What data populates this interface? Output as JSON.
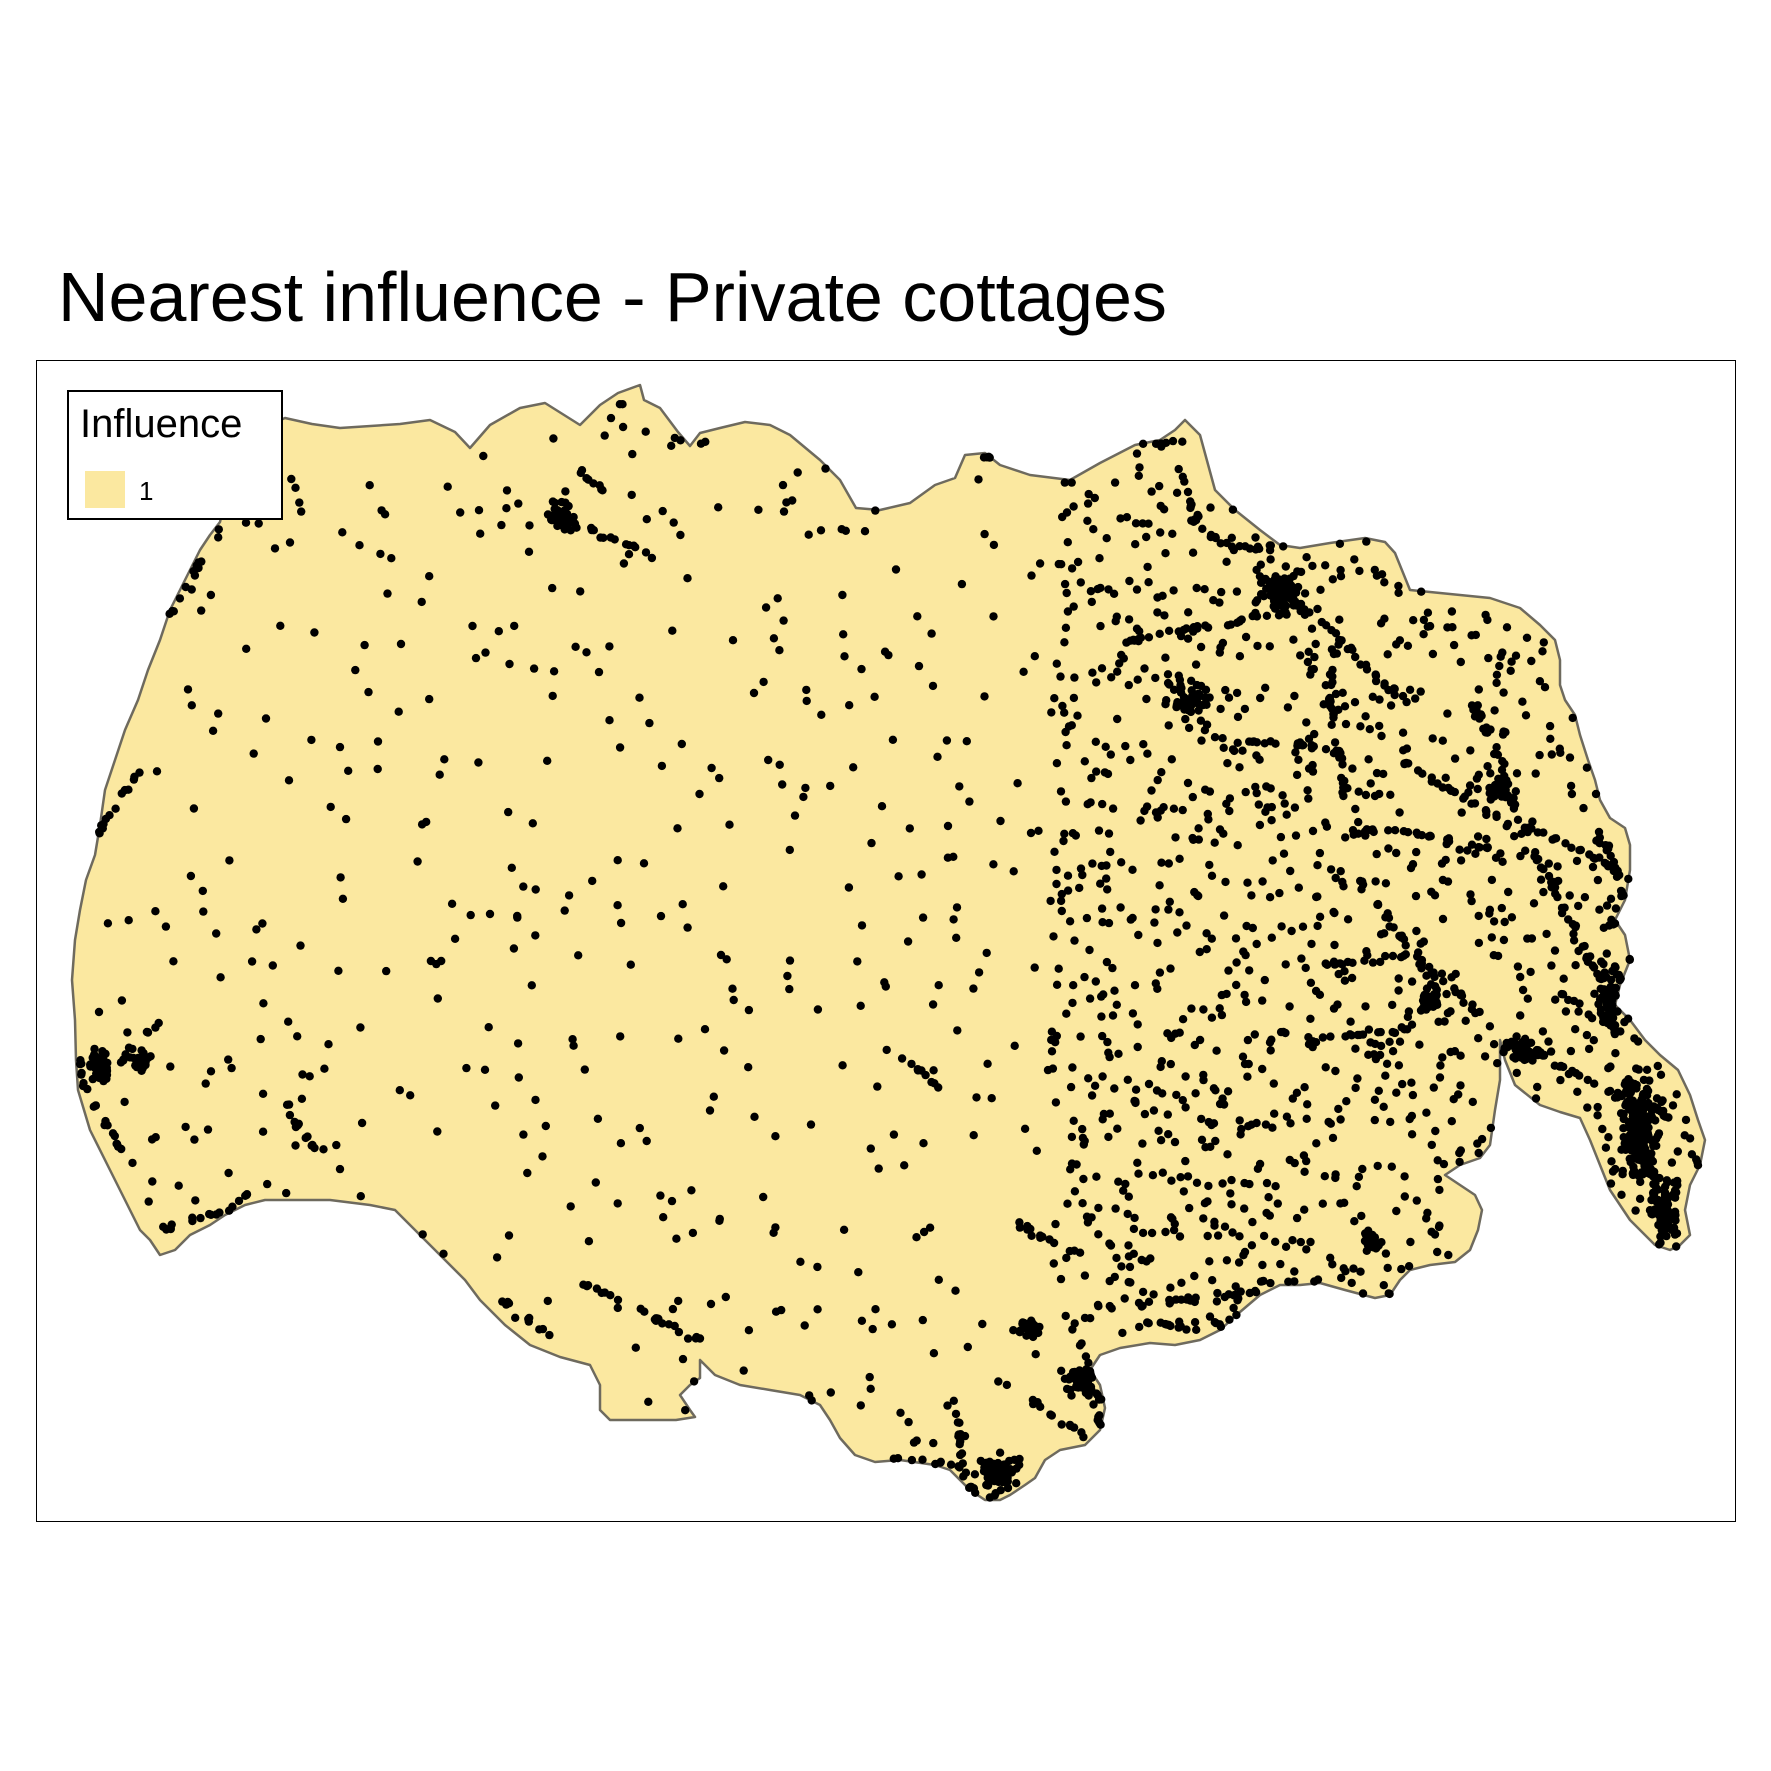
{
  "title": "Nearest influence - Private cottages",
  "legend": {
    "title": "Influence",
    "items": [
      {
        "label": "1",
        "color": "#fbe8a0"
      }
    ]
  },
  "colors": {
    "fill": "#fbe8a0",
    "outline": "#6e6a5e",
    "points": "#000000",
    "frame": "#000000",
    "background": "#ffffff"
  }
}
